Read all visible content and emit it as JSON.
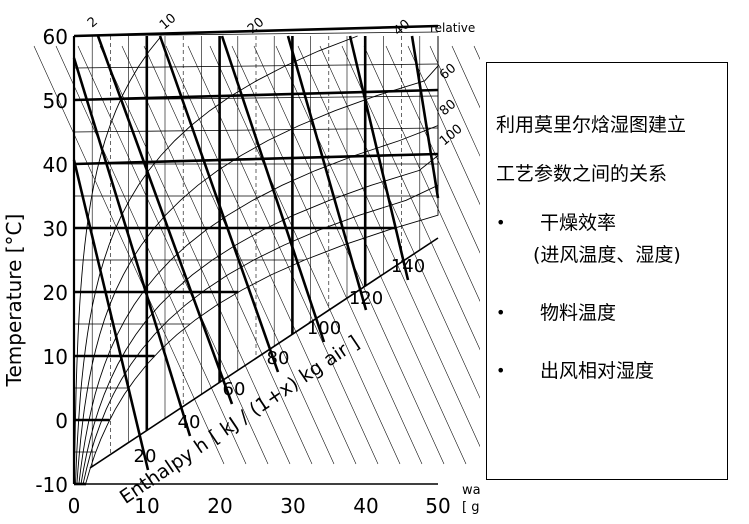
{
  "chart": {
    "y_axis_label": "Temperature [°C]",
    "y_ticks": [
      "60",
      "50",
      "40",
      "30",
      "20",
      "10",
      "0",
      "-10"
    ],
    "x_ticks": [
      "0",
      "10",
      "20",
      "30",
      "40",
      "50"
    ],
    "x_axis_label_line1": "water content x",
    "x_axis_label_line2": "[ g water / kg dry air]",
    "enthalpy_label": "Enthalpy h [ kJ / (1+x) kg  air ]",
    "enthalpy_ticks": [
      "20",
      "40",
      "60",
      "80",
      "100",
      "120",
      "140"
    ],
    "rh_label": "relative humidity [%]",
    "rh_ticks": [
      "2",
      "10",
      "20",
      "40",
      "60",
      "80",
      "100"
    ]
  },
  "info": {
    "title_line1": "利用莫里尔焓湿图建立",
    "title_line2": "工艺参数之间的关系",
    "items": [
      {
        "text": "干燥效率",
        "sub": "(进风温度、湿度)"
      },
      {
        "text": "物料温度"
      },
      {
        "text": "出风相对湿度"
      }
    ],
    "bullet": "•"
  }
}
